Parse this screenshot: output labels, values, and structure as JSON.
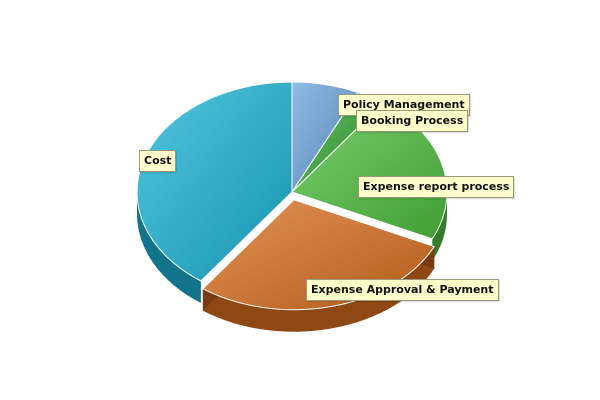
{
  "chart_data": {
    "type": "pie",
    "title": "",
    "slices": [
      {
        "label": "Policy Management",
        "value": 7,
        "color": "#6aa3dc"
      },
      {
        "label": "Booking Process",
        "value": 3,
        "color": "#34a834"
      },
      {
        "label": "Expense report process",
        "value": 22,
        "color": "#4fbf3f"
      },
      {
        "label": "Expense Approval & Payment",
        "value": 28,
        "color": "#d96f1e"
      },
      {
        "label": "Cost",
        "value": 40,
        "color": "#1bb3d6"
      }
    ]
  }
}
